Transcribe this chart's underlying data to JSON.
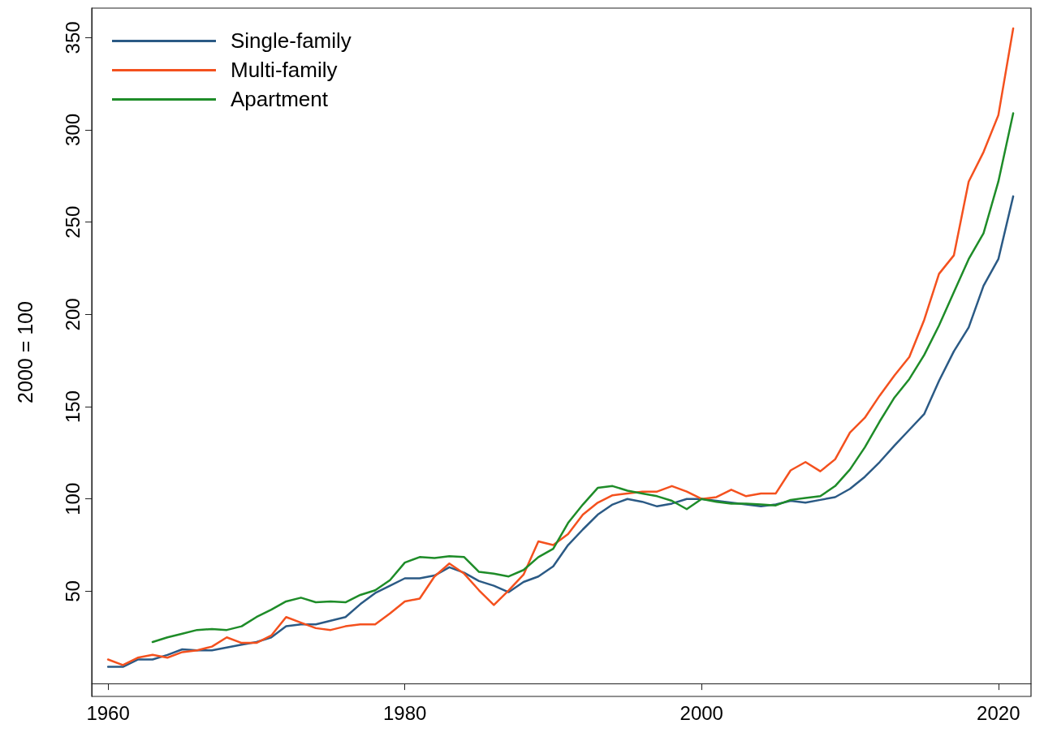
{
  "chart_data": {
    "type": "line",
    "ylabel": "2000 = 100",
    "x": [
      1960,
      1961,
      1962,
      1963,
      1964,
      1965,
      1966,
      1967,
      1968,
      1969,
      1970,
      1971,
      1972,
      1973,
      1974,
      1975,
      1976,
      1977,
      1978,
      1979,
      1980,
      1981,
      1982,
      1983,
      1984,
      1985,
      1986,
      1987,
      1988,
      1989,
      1990,
      1991,
      1992,
      1993,
      1994,
      1995,
      1996,
      1997,
      1998,
      1999,
      2000,
      2001,
      2002,
      2003,
      2004,
      2005,
      2006,
      2007,
      2008,
      2009,
      2010,
      2011,
      2012,
      2013,
      2014,
      2015,
      2016,
      2017,
      2018,
      2019,
      2020,
      2021
    ],
    "series": [
      {
        "name": "Single-family",
        "color": "#2b5a85",
        "values": [
          9,
          9,
          13,
          13,
          15.5,
          18.5,
          18,
          18,
          19.5,
          21,
          22.5,
          25,
          31,
          32,
          32,
          34,
          36,
          43,
          49,
          53,
          57,
          57,
          58.5,
          63,
          60,
          55.5,
          53,
          49.5,
          55,
          58,
          63.5,
          75,
          83.5,
          91.5,
          97,
          100,
          98.5,
          96,
          97.5,
          100,
          100,
          99,
          98,
          97,
          96,
          97,
          99,
          98,
          99.5,
          101,
          105.5,
          112,
          120,
          129,
          137.5,
          146,
          164,
          180,
          193,
          215.5,
          230,
          264
        ]
      },
      {
        "name": "Multi-family",
        "color": "#f4511e",
        "values": [
          13,
          10,
          14,
          15.5,
          14,
          17,
          18,
          20,
          25,
          22,
          22,
          26,
          36,
          33,
          30,
          29,
          31,
          32,
          32,
          38,
          44.5,
          46,
          58,
          65,
          59.5,
          50.5,
          42.5,
          50.5,
          59,
          77,
          75,
          81,
          91.5,
          98,
          102,
          103,
          104,
          104,
          107,
          104,
          100,
          101,
          105,
          101.5,
          103,
          103,
          115.5,
          120,
          115,
          121.5,
          136,
          144,
          156,
          167,
          177,
          197,
          222,
          232,
          272,
          288,
          308,
          355
        ]
      },
      {
        "name": "Apartment",
        "color": "#1e8c28",
        "values": [
          null,
          null,
          null,
          22.5,
          25,
          27,
          29,
          29.5,
          29,
          31,
          36,
          40,
          44.5,
          46.5,
          44,
          44.5,
          44,
          48,
          50.5,
          56,
          65.5,
          68.5,
          68,
          69,
          68.5,
          60.5,
          59.5,
          58,
          61.5,
          68.5,
          73,
          87,
          97,
          106,
          107,
          104.5,
          103,
          101.5,
          99,
          94.5,
          100,
          98.5,
          97.5,
          97.5,
          97,
          96.5,
          99.5,
          100.5,
          101.5,
          107,
          116,
          128,
          142,
          155,
          165,
          178,
          194,
          212,
          230,
          244,
          272,
          309
        ]
      }
    ],
    "xlim": [
      1958.9,
      2022.2
    ],
    "xticks": [
      1960,
      1980,
      2000,
      2020
    ],
    "ylim": [
      -7,
      366
    ],
    "yticks": [
      50,
      100,
      150,
      200,
      250,
      300,
      350
    ],
    "grid": false,
    "legend": "top left"
  }
}
